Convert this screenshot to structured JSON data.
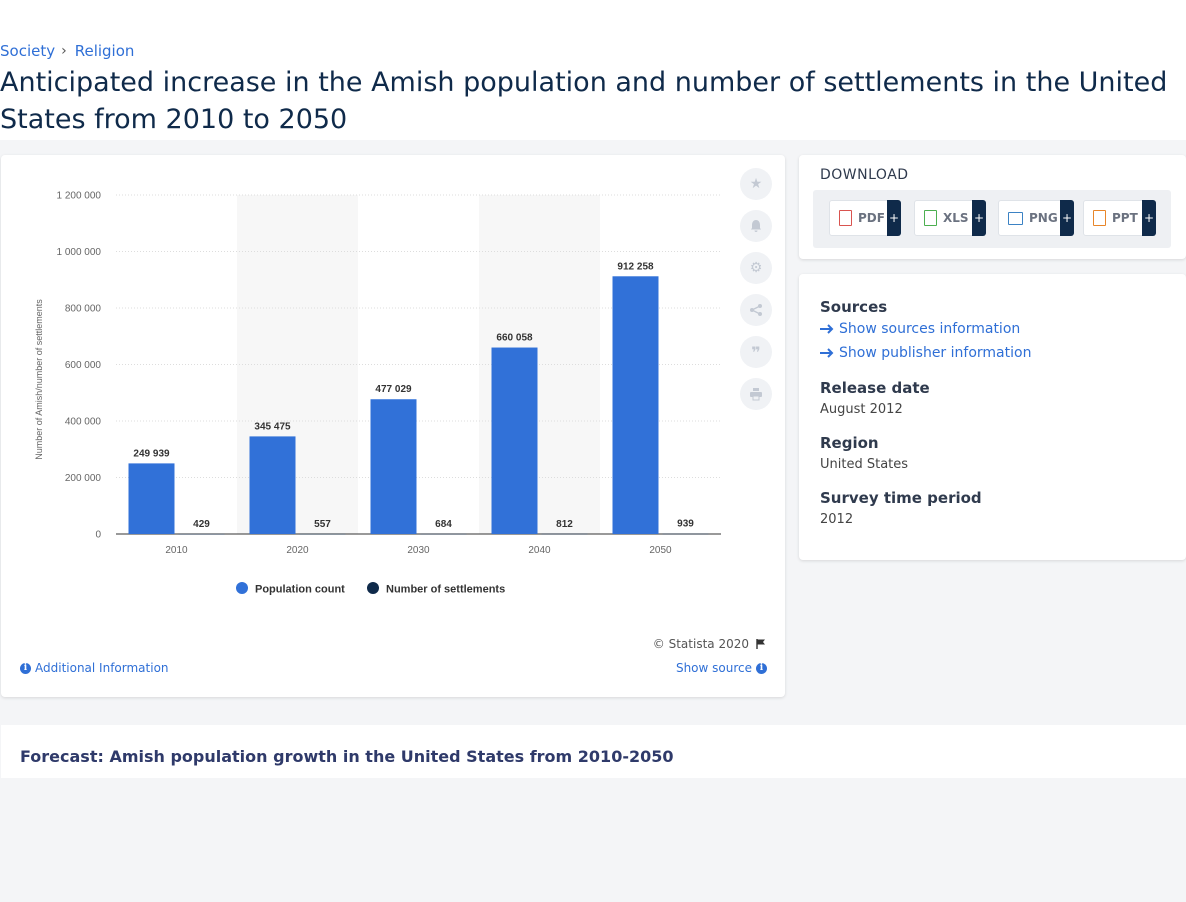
{
  "breadcrumb": {
    "items": [
      "Society",
      "Religion"
    ],
    "separator": "›"
  },
  "page_title": "Anticipated increase in the Amish population and number of settlements in the United States from 2010 to 2050",
  "chart_data": {
    "type": "bar",
    "categories": [
      "2010",
      "2020",
      "2030",
      "2040",
      "2050"
    ],
    "series": [
      {
        "name": "Population count",
        "values": [
          249939,
          345475,
          477029,
          660058,
          912258
        ],
        "labels": [
          "249 939",
          "345 475",
          "477 029",
          "660 058",
          "912 258"
        ],
        "color": "#3171d8"
      },
      {
        "name": "Number of settlements",
        "values": [
          429,
          557,
          684,
          812,
          939
        ],
        "labels": [
          "429",
          "557",
          "684",
          "812",
          "939"
        ],
        "color": "#0f2a4a"
      }
    ],
    "ylabel": "Number of Amish/number of settlements",
    "ylim": [
      0,
      1200000
    ],
    "yticks": [
      0,
      200000,
      400000,
      600000,
      800000,
      1000000,
      1200000
    ],
    "ytick_labels": [
      "0",
      "200 000",
      "400 000",
      "600 000",
      "800 000",
      "1 000 000",
      "1 200 000"
    ],
    "grid": true,
    "legend": "bottom-center"
  },
  "tools": [
    "star-icon",
    "bell-icon",
    "gear-icon",
    "share-icon",
    "quote-icon",
    "print-icon"
  ],
  "copyright": "© Statista 2020",
  "additional_info": "Additional Information",
  "show_source": "Show source",
  "download": {
    "title": "DOWNLOAD",
    "buttons": [
      {
        "label": "PDF",
        "color": "#d9534f"
      },
      {
        "label": "XLS",
        "color": "#4caf50"
      },
      {
        "label": "PNG",
        "color": "#3b82c4"
      },
      {
        "label": "PPT",
        "color": "#e8862a"
      }
    ],
    "plus": "+"
  },
  "info": {
    "sources_heading": "Sources",
    "show_sources": "Show sources information",
    "show_publisher": "Show publisher information",
    "release_heading": "Release date",
    "release_value": "August 2012",
    "region_heading": "Region",
    "region_value": "United States",
    "survey_heading": "Survey time period",
    "survey_value": "2012"
  },
  "bottom_title": "Forecast: Amish population growth in the United States from 2010-2050",
  "colors": {
    "accent": "#2f6fd6",
    "navy": "#0f2a4a",
    "bar_blue": "#3171d8"
  }
}
